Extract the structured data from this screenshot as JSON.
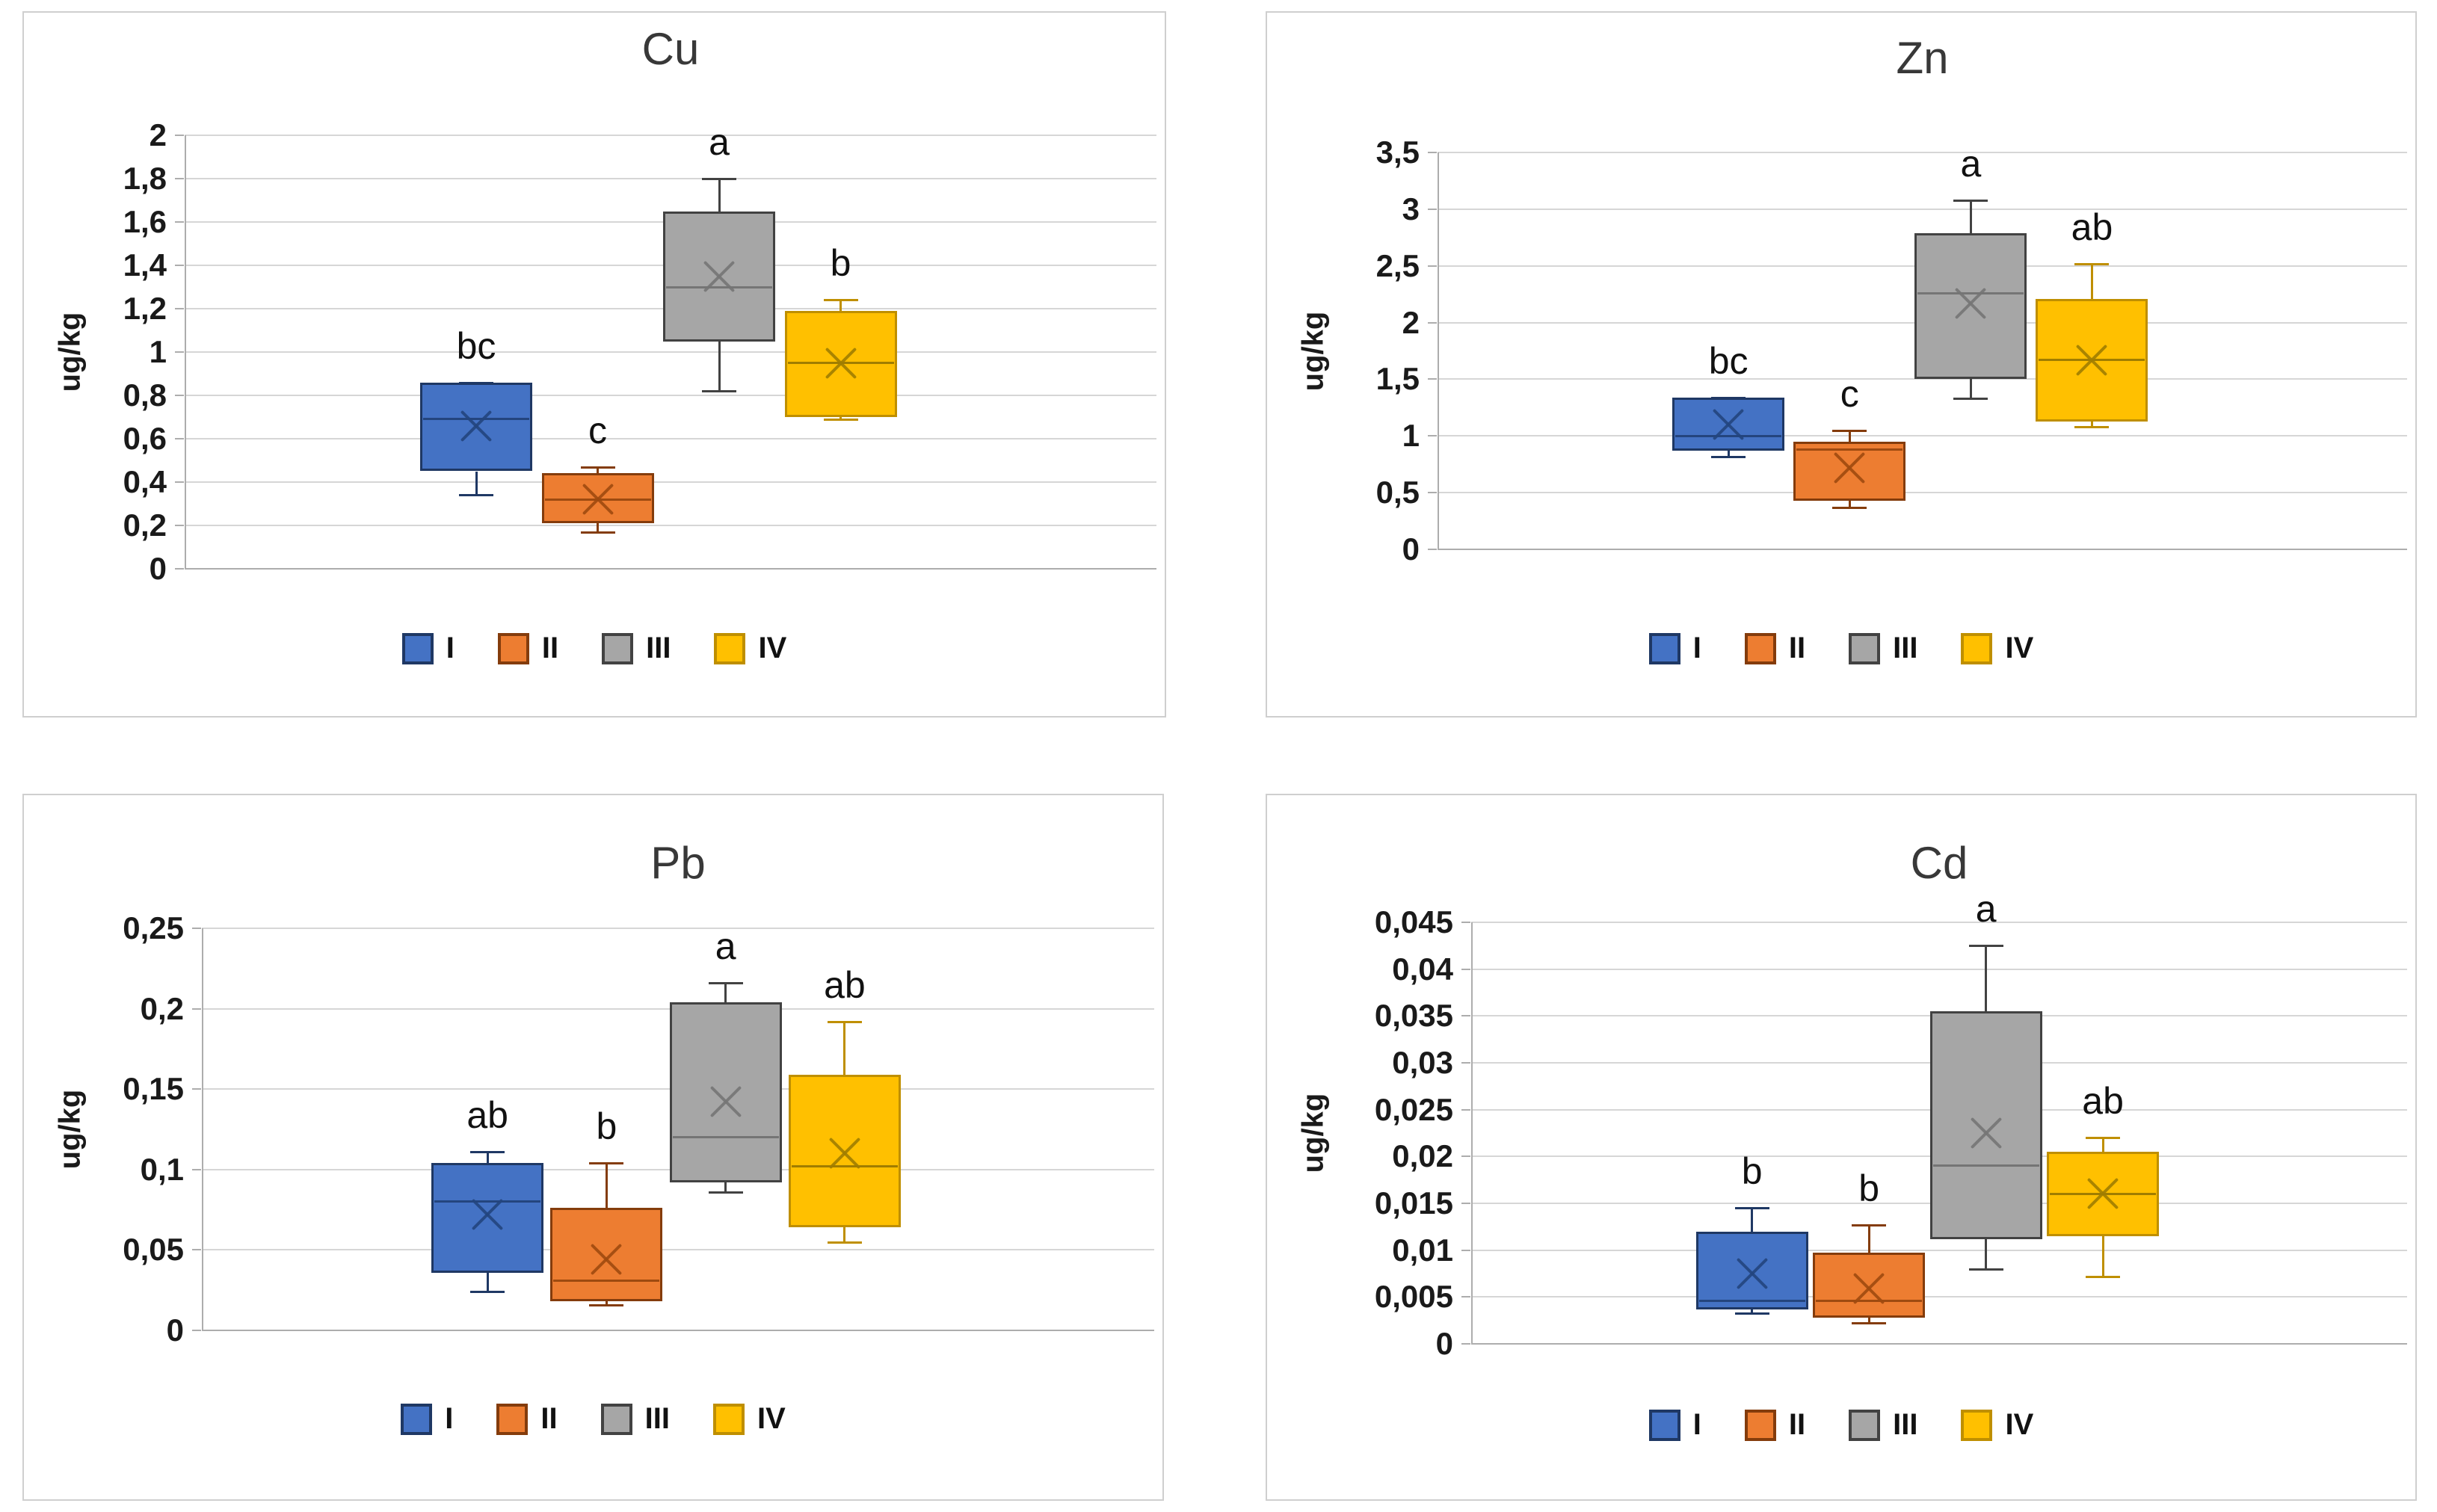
{
  "page": {
    "background": "#ffffff"
  },
  "legend": {
    "items": [
      {
        "label": "I",
        "fill": "#4472C4",
        "border": "#1F3864",
        "accent": "#24457E"
      },
      {
        "label": "II",
        "fill": "#ED7D31",
        "border": "#843C0C",
        "accent": "#9E4A10"
      },
      {
        "label": "III",
        "fill": "#A6A6A6",
        "border": "#424242",
        "accent": "#757575"
      },
      {
        "label": "IV",
        "fill": "#FFC000",
        "border": "#BF8F00",
        "accent": "#A07D00"
      }
    ]
  },
  "chart_data": [
    {
      "type": "box",
      "title": "Cu",
      "ylabel": "ug/kg",
      "ylim": [
        0,
        2
      ],
      "grid": true,
      "legend_position": "bottom",
      "categories": [
        "I",
        "II",
        "III",
        "IV"
      ],
      "yticks": [
        {
          "label": "2",
          "value": 2
        },
        {
          "label": "1,8",
          "value": 1.8
        },
        {
          "label": "1,6",
          "value": 1.6
        },
        {
          "label": "1,4",
          "value": 1.4
        },
        {
          "label": "1,2",
          "value": 1.2
        },
        {
          "label": "1",
          "value": 1
        },
        {
          "label": "0,8",
          "value": 0.8
        },
        {
          "label": "0,6",
          "value": 0.6
        },
        {
          "label": "0,4",
          "value": 0.4
        },
        {
          "label": "0,2",
          "value": 0.2
        },
        {
          "label": "0",
          "value": 0
        }
      ],
      "series": [
        {
          "group": "I",
          "letter": "bc",
          "min": 0.34,
          "q1": 0.45,
          "median": 0.69,
          "mean": 0.66,
          "q3": 0.86,
          "max": 0.86
        },
        {
          "group": "II",
          "letter": "c",
          "min": 0.17,
          "q1": 0.21,
          "median": 0.32,
          "mean": 0.32,
          "q3": 0.44,
          "max": 0.47
        },
        {
          "group": "III",
          "letter": "a",
          "min": 0.82,
          "q1": 1.05,
          "median": 1.3,
          "mean": 1.35,
          "q3": 1.65,
          "max": 1.8
        },
        {
          "group": "IV",
          "letter": "b",
          "min": 0.69,
          "q1": 0.7,
          "median": 0.95,
          "mean": 0.95,
          "q3": 1.19,
          "max": 1.24
        }
      ]
    },
    {
      "type": "box",
      "title": "Zn",
      "ylabel": "ug/kg",
      "ylim": [
        0,
        3.5
      ],
      "grid": true,
      "legend_position": "bottom",
      "categories": [
        "I",
        "II",
        "III",
        "IV"
      ],
      "yticks": [
        {
          "label": "3,5",
          "value": 3.5
        },
        {
          "label": "3",
          "value": 3
        },
        {
          "label": "2,5",
          "value": 2.5
        },
        {
          "label": "2",
          "value": 2
        },
        {
          "label": "1,5",
          "value": 1.5
        },
        {
          "label": "1",
          "value": 1
        },
        {
          "label": "0,5",
          "value": 0.5
        },
        {
          "label": "0",
          "value": 0
        }
      ],
      "series": [
        {
          "group": "I",
          "letter": "bc",
          "min": 0.82,
          "q1": 0.87,
          "median": 1.0,
          "mean": 1.1,
          "q3": 1.34,
          "max": 1.34
        },
        {
          "group": "II",
          "letter": "c",
          "min": 0.37,
          "q1": 0.43,
          "median": 0.88,
          "mean": 0.72,
          "q3": 0.95,
          "max": 1.05
        },
        {
          "group": "III",
          "letter": "a",
          "min": 1.33,
          "q1": 1.5,
          "median": 2.26,
          "mean": 2.17,
          "q3": 2.79,
          "max": 3.08
        },
        {
          "group": "IV",
          "letter": "ab",
          "min": 1.08,
          "q1": 1.13,
          "median": 1.67,
          "mean": 1.67,
          "q3": 2.21,
          "max": 2.52
        }
      ]
    },
    {
      "type": "box",
      "title": "Pb",
      "ylabel": "ug/kg",
      "ylim": [
        0,
        0.25
      ],
      "grid": true,
      "legend_position": "bottom",
      "categories": [
        "I",
        "II",
        "III",
        "IV"
      ],
      "yticks": [
        {
          "label": "0,25",
          "value": 0.25
        },
        {
          "label": "0,2",
          "value": 0.2
        },
        {
          "label": "0,15",
          "value": 0.15
        },
        {
          "label": "0,1",
          "value": 0.1
        },
        {
          "label": "0,05",
          "value": 0.05
        },
        {
          "label": "0",
          "value": 0
        }
      ],
      "series": [
        {
          "group": "I",
          "letter": "ab",
          "min": 0.024,
          "q1": 0.036,
          "median": 0.08,
          "mean": 0.072,
          "q3": 0.104,
          "max": 0.111
        },
        {
          "group": "II",
          "letter": "b",
          "min": 0.016,
          "q1": 0.018,
          "median": 0.031,
          "mean": 0.044,
          "q3": 0.076,
          "max": 0.104
        },
        {
          "group": "III",
          "letter": "a",
          "min": 0.086,
          "q1": 0.092,
          "median": 0.12,
          "mean": 0.142,
          "q3": 0.204,
          "max": 0.216
        },
        {
          "group": "IV",
          "letter": "ab",
          "min": 0.055,
          "q1": 0.064,
          "median": 0.102,
          "mean": 0.11,
          "q3": 0.159,
          "max": 0.192
        }
      ]
    },
    {
      "type": "box",
      "title": "Cd",
      "ylabel": "ug/kg",
      "ylim": [
        0,
        0.045
      ],
      "grid": true,
      "legend_position": "bottom",
      "categories": [
        "I",
        "II",
        "III",
        "IV"
      ],
      "yticks": [
        {
          "label": "0,045",
          "value": 0.045
        },
        {
          "label": "0,04",
          "value": 0.04
        },
        {
          "label": "0,035",
          "value": 0.035
        },
        {
          "label": "0,03",
          "value": 0.03
        },
        {
          "label": "0,025",
          "value": 0.025
        },
        {
          "label": "0,02",
          "value": 0.02
        },
        {
          "label": "0,015",
          "value": 0.015
        },
        {
          "label": "0,01",
          "value": 0.01
        },
        {
          "label": "0,005",
          "value": 0.005
        },
        {
          "label": "0",
          "value": 0
        }
      ],
      "series": [
        {
          "group": "I",
          "letter": "b",
          "min": 0.0033,
          "q1": 0.0037,
          "median": 0.0046,
          "mean": 0.0075,
          "q3": 0.012,
          "max": 0.0145
        },
        {
          "group": "II",
          "letter": "b",
          "min": 0.0022,
          "q1": 0.0028,
          "median": 0.0046,
          "mean": 0.0059,
          "q3": 0.0097,
          "max": 0.0127
        },
        {
          "group": "III",
          "letter": "a",
          "min": 0.008,
          "q1": 0.0112,
          "median": 0.019,
          "mean": 0.0225,
          "q3": 0.0355,
          "max": 0.0425
        },
        {
          "group": "IV",
          "letter": "ab",
          "min": 0.0072,
          "q1": 0.0115,
          "median": 0.016,
          "mean": 0.016,
          "q3": 0.0205,
          "max": 0.022
        }
      ]
    }
  ]
}
